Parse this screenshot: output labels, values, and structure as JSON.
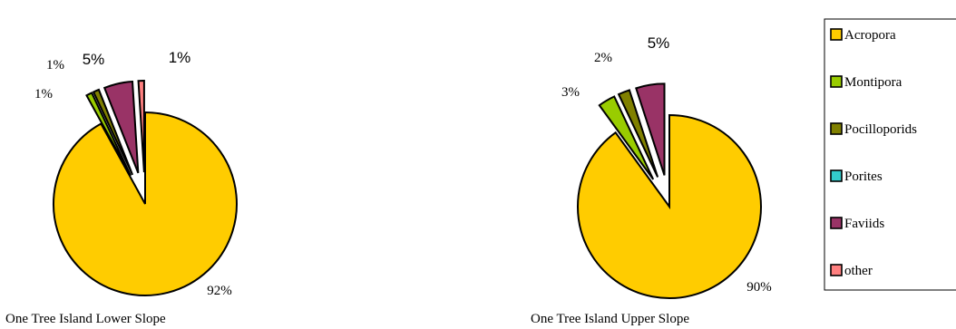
{
  "legend": [
    {
      "name": "Acropora",
      "color": "#FFCC00"
    },
    {
      "name": "Montipora",
      "color": "#99CC00"
    },
    {
      "name": "Pocilloporids",
      "color": "#808000"
    },
    {
      "name": "Porites",
      "color": "#33CCCC"
    },
    {
      "name": "Faviids",
      "color": "#993366"
    },
    {
      "name": "other",
      "color": "#FF8080"
    }
  ],
  "chart_data": [
    {
      "type": "pie",
      "title": "One Tree Island Lower Slope",
      "categories": [
        "Acropora",
        "Montipora",
        "Pocilloporids",
        "Porites",
        "Faviids",
        "other"
      ],
      "values": [
        92,
        1,
        1,
        0,
        5,
        1
      ],
      "data_labels": [
        "92%",
        "1%",
        "1%",
        "",
        "5%",
        "1%"
      ],
      "exploded": [
        "Montipora",
        "Pocilloporids",
        "Faviids",
        "other"
      ],
      "legend": "right"
    },
    {
      "type": "pie",
      "title": "One Tree Island Upper Slope",
      "categories": [
        "Acropora",
        "Montipora",
        "Pocilloporids",
        "Porites",
        "Faviids",
        "other"
      ],
      "values": [
        90,
        3,
        2,
        0,
        5,
        0
      ],
      "data_labels": [
        "90%",
        "3%",
        "2%",
        "",
        "5%",
        ""
      ],
      "exploded": [
        "Montipora",
        "Pocilloporids",
        "Faviids"
      ],
      "legend": "right"
    }
  ]
}
